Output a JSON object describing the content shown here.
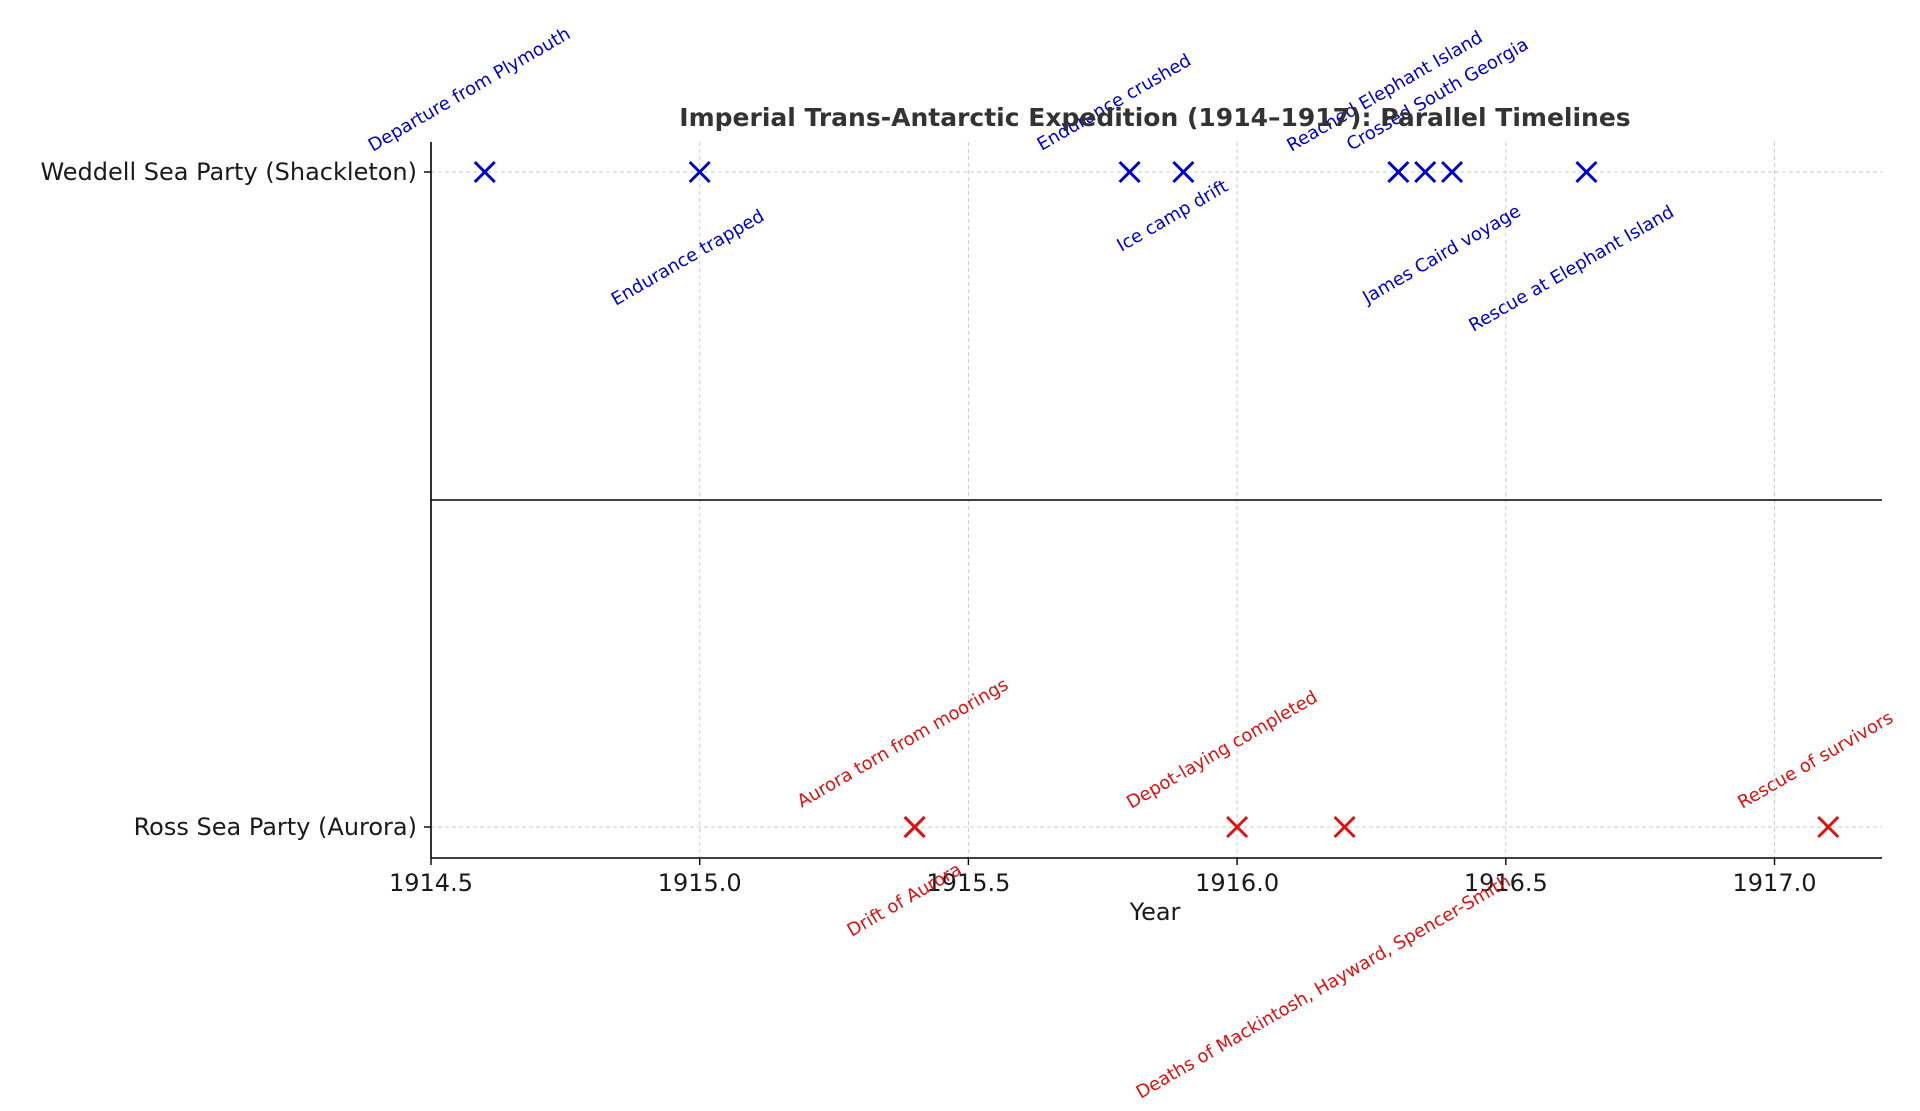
{
  "chart_data": {
    "type": "scatter",
    "title": "Imperial Trans-Antarctic Expedition (1914–1917): Parallel Timelines",
    "xlabel": "Year",
    "ylabel": "",
    "xlim": [
      1914.5,
      1917.2
    ],
    "x_ticks": [
      "1914.5",
      "1915.0",
      "1915.5",
      "1916.0",
      "1916.5",
      "1917.0"
    ],
    "grid": true,
    "categories": [
      "Ross Sea Party (Aurora)",
      "Weddell Sea Party (Shackleton)"
    ],
    "marker": "x",
    "series": [
      {
        "category": "Weddell Sea Party (Shackleton)",
        "color": "#0000cc",
        "events": [
          {
            "x": 1914.6,
            "label": "Departure from Plymouth"
          },
          {
            "x": 1915.0,
            "label": "Endurance trapped"
          },
          {
            "x": 1915.8,
            "label": "Endurance crushed"
          },
          {
            "x": 1915.9,
            "label": "Ice camp drift"
          },
          {
            "x": 1916.3,
            "label": "Reached Elephant Island"
          },
          {
            "x": 1916.35,
            "label": "James Caird voyage"
          },
          {
            "x": 1916.4,
            "label": "Crossed South Georgia"
          },
          {
            "x": 1916.65,
            "label": "Rescue at Elephant Island"
          }
        ]
      },
      {
        "category": "Ross Sea Party (Aurora)",
        "color": "#dd1111",
        "events": [
          {
            "x": 1915.4,
            "label": "Aurora torn from moorings"
          },
          {
            "x": 1915.4,
            "label": "Drift of Aurora"
          },
          {
            "x": 1916.0,
            "label": "Depot-laying completed"
          },
          {
            "x": 1916.2,
            "label": "Deaths of Mackintosh, Hayward, Spencer-Smith"
          },
          {
            "x": 1917.1,
            "label": "Rescue of survivors"
          }
        ]
      }
    ]
  }
}
